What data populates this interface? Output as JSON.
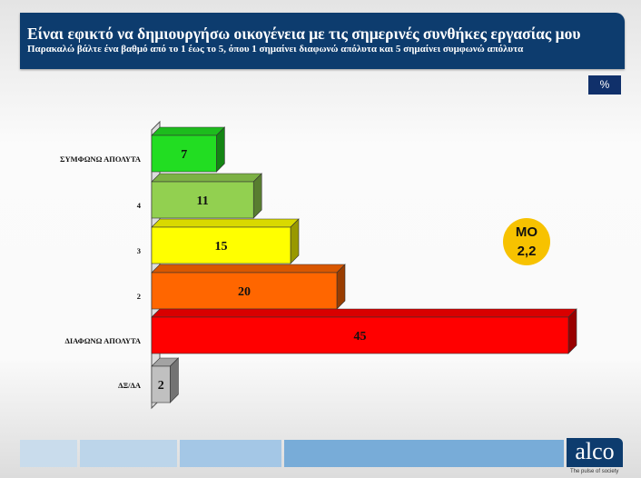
{
  "header": {
    "title": "Είναι εφικτό να δημιουργήσω οικογένεια με τις σημερινές συνθήκες εργασίας μου",
    "subtitle": "Παρακαλώ βάλτε ένα βαθμό από το 1 έως το 5, όπου 1 σημαίνει διαφωνώ απόλυτα και 5 σημαίνει συμφωνώ απόλυτα"
  },
  "unit_badge": "%",
  "mean": {
    "label": "ΜΟ",
    "value": "2,2"
  },
  "logo": {
    "text": "alco",
    "tagline": "The pulse of society"
  },
  "chart_data": {
    "type": "bar",
    "orientation": "horizontal",
    "categories": [
      "ΣΥΜΦΩΝΩ ΑΠΟΛΥΤΑ",
      "4",
      "3",
      "2",
      "ΔΙΑΦΩΝΩ ΑΠΟΛΥΤΑ",
      "ΔΞ/ΔΑ"
    ],
    "values": [
      7,
      11,
      15,
      20,
      45,
      2
    ],
    "colors": [
      "#22dd22",
      "#92d050",
      "#ffff00",
      "#ff6600",
      "#ff0000",
      "#c0c0c0"
    ],
    "xlim": [
      0,
      45
    ],
    "grid": false
  }
}
